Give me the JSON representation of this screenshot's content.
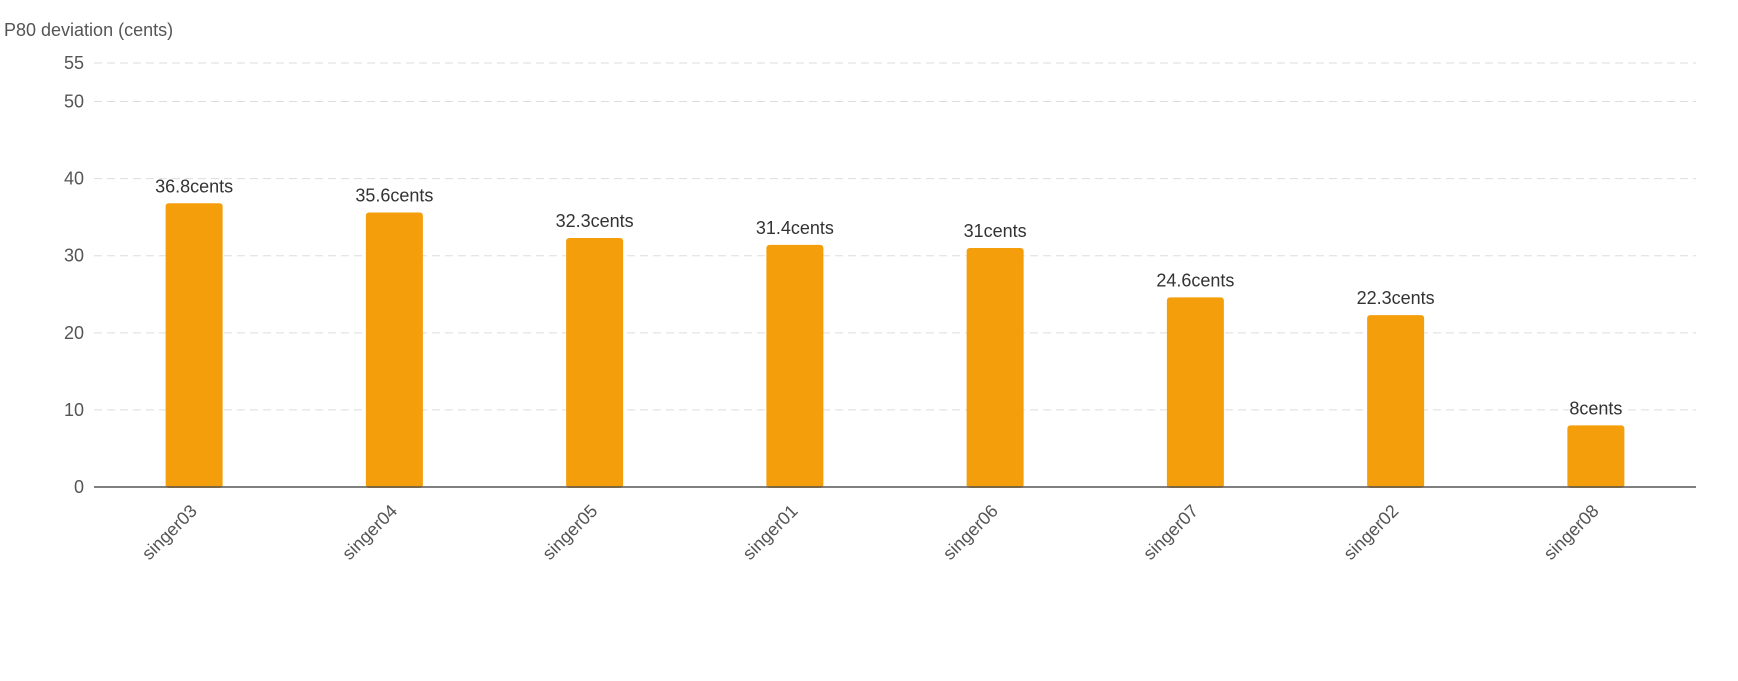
{
  "chart_data": {
    "type": "bar",
    "title": "",
    "ylabel": "P80 deviation (cents)",
    "xlabel": "",
    "categories": [
      "singer03",
      "singer04",
      "singer05",
      "singer01",
      "singer06",
      "singer07",
      "singer02",
      "singer08"
    ],
    "values": [
      36.8,
      35.6,
      32.3,
      31.4,
      31,
      24.6,
      22.3,
      8
    ],
    "data_labels": [
      "36.8cents",
      "35.6cents",
      "32.3cents",
      "31.4cents",
      "31cents",
      "24.6cents",
      "22.3cents",
      "8cents"
    ],
    "yticks": [
      0,
      10,
      20,
      30,
      40,
      50,
      55
    ],
    "ytick_labels": [
      "0",
      "10",
      "20",
      "30",
      "40",
      "50",
      "55"
    ],
    "ylim": [
      0,
      55
    ],
    "grid": true,
    "legend": "none",
    "colors": {
      "bar": "#F59E0B",
      "grid": "#DDDDDD",
      "axis": "#555555"
    }
  }
}
